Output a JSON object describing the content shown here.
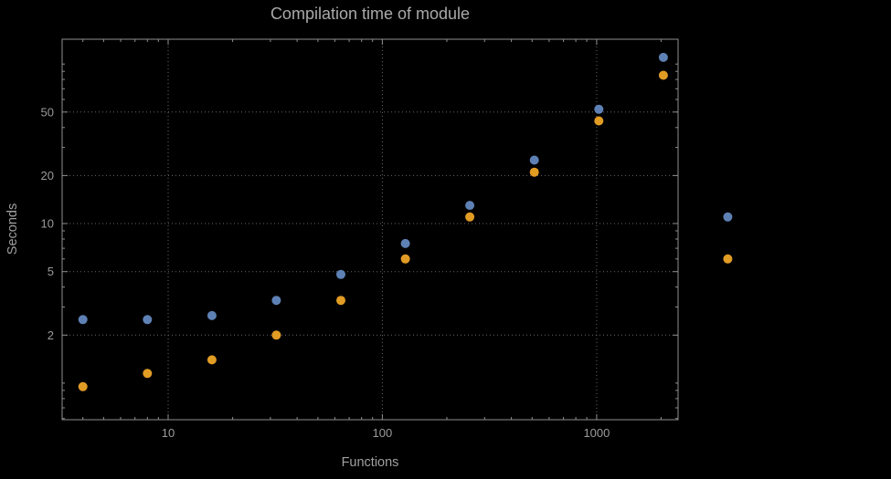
{
  "chart_data": {
    "type": "scatter",
    "title": "Compilation time of module",
    "xlabel": "Functions",
    "ylabel": "Seconds",
    "x_scale": "log",
    "y_scale": "log",
    "x_range": [
      3.2,
      2400
    ],
    "y_range": [
      0.59,
      143
    ],
    "x_ticks_labeled": [
      10,
      100,
      1000
    ],
    "y_ticks_labeled": [
      2,
      5,
      10,
      20,
      50
    ],
    "grid": "dotted",
    "legend": "none",
    "series": [
      {
        "name": "blue",
        "color": "#5E81B5",
        "x": [
          4,
          8,
          16,
          32,
          64,
          128,
          256,
          512,
          1024,
          2048,
          4096
        ],
        "y": [
          2.5,
          2.5,
          2.65,
          3.3,
          4.8,
          7.5,
          13,
          25,
          52,
          110,
          11
        ]
      },
      {
        "name": "orange",
        "color": "#E19C24",
        "x": [
          4,
          8,
          16,
          32,
          64,
          128,
          256,
          512,
          1024,
          2048,
          4096
        ],
        "y": [
          0.95,
          1.15,
          1.4,
          2.0,
          3.3,
          6.0,
          11,
          21,
          44,
          85,
          6.0
        ]
      }
    ]
  },
  "colors": {
    "background": "#000000",
    "frame": "#8f8f8f",
    "grid": "#686868",
    "text": "#9b9b9b"
  }
}
